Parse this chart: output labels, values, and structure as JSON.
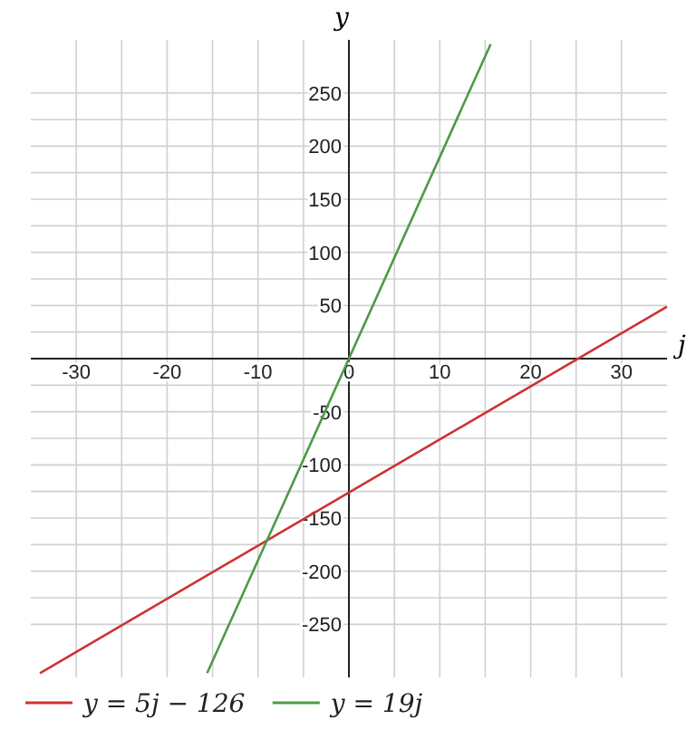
{
  "chart_data": {
    "type": "line",
    "xlabel": "j",
    "ylabel": "y",
    "xlim": [
      -35,
      35
    ],
    "ylim": [
      -300,
      300
    ],
    "xticks": [
      -30,
      -20,
      -10,
      0,
      10,
      20,
      30
    ],
    "yticks": [
      -250,
      -200,
      -150,
      -100,
      -50,
      {
        "value": 0,
        "label": null
      },
      50,
      100,
      150,
      200,
      250
    ],
    "grid": true,
    "legend": "bottom left",
    "line_style": "solid",
    "series": [
      {
        "name": "y = 5j − 126",
        "color": "#cc3333",
        "x": [
          -34,
          35
        ],
        "values": [
          -296,
          49
        ]
      },
      {
        "name": "y = 19j",
        "color": "#4e9a45",
        "x": [
          -15.6,
          15.6
        ],
        "values": [
          -296,
          296
        ]
      }
    ]
  }
}
